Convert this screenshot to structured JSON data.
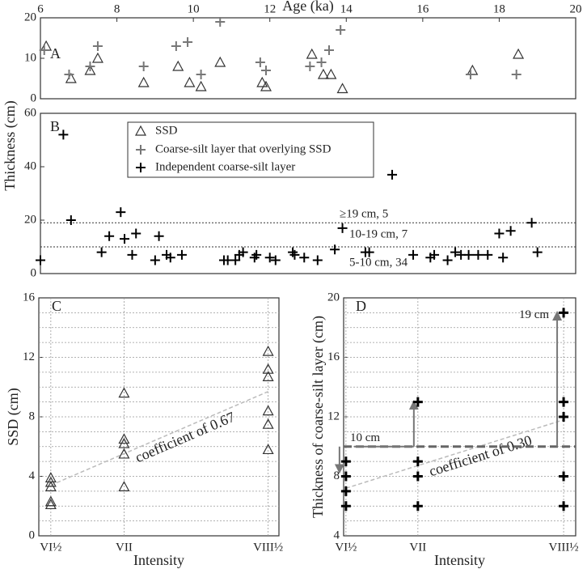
{
  "chart_data": [
    {
      "type": "scatter",
      "panel": "A",
      "xlabel": "Age (ka)",
      "ylabel": "Thickness (cm)",
      "xlim": [
        6,
        20
      ],
      "xticks": [
        6,
        8,
        10,
        12,
        14,
        16,
        18,
        20
      ],
      "ylim": [
        0,
        20
      ],
      "yticks": [
        0,
        10,
        20
      ],
      "series": [
        {
          "name": "SSD",
          "marker": "triangle",
          "color": "#333333",
          "x": [
            6.15,
            6.8,
            7.3,
            7.5,
            8.7,
            9.6,
            9.9,
            10.2,
            10.7,
            11.8,
            11.9,
            13.1,
            13.4,
            13.6,
            13.9,
            17.3,
            18.5
          ],
          "values": [
            13,
            5,
            7,
            10,
            4,
            8,
            4,
            3,
            9,
            4,
            3,
            11,
            6,
            6,
            2.5,
            7,
            11
          ]
        },
        {
          "name": "Coarse-silt layer that overlying SSD",
          "marker": "plus",
          "color": "#777777",
          "x": [
            6.1,
            6.75,
            7.3,
            7.5,
            8.7,
            9.55,
            9.85,
            10.2,
            10.7,
            11.75,
            11.9,
            13.05,
            13.35,
            13.55,
            13.85,
            17.25,
            18.45
          ],
          "values": [
            12,
            6,
            8,
            13,
            8,
            13,
            14,
            6,
            19,
            9,
            7,
            8,
            9,
            12,
            17,
            6,
            6
          ]
        }
      ]
    },
    {
      "type": "scatter",
      "panel": "B",
      "xlim": [
        6,
        20
      ],
      "ylim": [
        0,
        60
      ],
      "yticks": [
        0,
        20,
        40,
        60
      ],
      "hlines": [
        19,
        10
      ],
      "annotations": [
        "≥19 cm, 5",
        "10-19 cm, 7",
        "5-10 cm, 34"
      ],
      "series": [
        {
          "name": "Independent coarse-silt layer",
          "marker": "plus",
          "color": "#000000",
          "x": [
            6.0,
            6.6,
            6.8,
            7.6,
            7.8,
            8.1,
            8.2,
            8.4,
            8.5,
            9.0,
            9.1,
            9.3,
            9.4,
            9.7,
            10.8,
            10.9,
            11.1,
            11.2,
            11.3,
            11.6,
            11.65,
            12.0,
            12.15,
            12.6,
            12.65,
            12.9,
            13.25,
            13.7,
            13.9,
            14.5,
            14.6,
            15.2,
            15.75,
            16.2,
            16.3,
            16.65,
            16.85,
            17.0,
            17.2,
            17.45,
            17.7,
            18.0,
            18.1,
            18.3,
            18.85,
            19.0
          ],
          "values": [
            5,
            52,
            20,
            8,
            14,
            23,
            13,
            7,
            15,
            5,
            14,
            7,
            6,
            7,
            5,
            5,
            5,
            7,
            8,
            6,
            7,
            6,
            5,
            8,
            7,
            6,
            5,
            9,
            17,
            8,
            8,
            37,
            7,
            6,
            7,
            5,
            8,
            7,
            7,
            7,
            7,
            15,
            6,
            16,
            19,
            8
          ]
        }
      ]
    },
    {
      "type": "scatter",
      "panel": "C",
      "xlabel": "Intensity",
      "ylabel": "SSD (cm)",
      "categories": [
        "VI½",
        "VII",
        "VIII½"
      ],
      "ylim": [
        0,
        16
      ],
      "yticks": [
        0,
        4,
        8,
        12,
        16
      ],
      "minor_yticks": [
        1,
        2,
        3,
        4,
        5,
        6,
        7,
        8,
        9,
        10,
        11,
        12,
        13,
        14,
        15
      ],
      "trend": [
        3.4,
        9.7
      ],
      "trend_label": "coefficient of 0.67",
      "series": [
        {
          "marker": "triangle",
          "color": "#333333",
          "x": [
            "VI½",
            "VI½",
            "VI½",
            "VI½",
            "VI½",
            "VII",
            "VII",
            "VII",
            "VII",
            "VII",
            "VIII½",
            "VIII½",
            "VIII½",
            "VIII½",
            "VIII½",
            "VIII½"
          ],
          "values": [
            2.1,
            2.3,
            3.3,
            3.6,
            3.9,
            3.3,
            5.5,
            6.2,
            6.5,
            9.6,
            5.8,
            7.5,
            8.4,
            10.7,
            11.2,
            12.4
          ]
        }
      ]
    },
    {
      "type": "scatter",
      "panel": "D",
      "xlabel": "Intensity",
      "ylabel": "Thickness of coarse-silt layer (cm)",
      "categories": [
        "VI½",
        "VII",
        "VIII½"
      ],
      "ylim": [
        4,
        20
      ],
      "yticks": [
        4,
        8,
        12,
        16,
        20
      ],
      "minor_yticks": [
        5,
        6,
        7,
        8,
        9,
        10,
        11,
        12,
        13,
        14,
        15,
        16,
        17,
        18,
        19
      ],
      "trend": [
        7.2,
        11.8
      ],
      "trend_label": "coefficient of 0.30",
      "hline": 10,
      "hline_label": "10 cm",
      "arrows": [
        {
          "x": "VI½",
          "from": 10,
          "to": 8.3
        },
        {
          "x": "VII",
          "from": 10,
          "to": 13
        },
        {
          "x": "VIII½",
          "from": 10,
          "to": 19
        }
      ],
      "arrow_label": "19 cm",
      "series": [
        {
          "marker": "plus",
          "color": "#000000",
          "x": [
            "VI½",
            "VI½",
            "VI½",
            "VI½",
            "VII",
            "VII",
            "VII",
            "VII",
            "VIII½",
            "VIII½",
            "VIII½",
            "VIII½",
            "VIII½"
          ],
          "values": [
            6,
            7,
            8,
            9,
            6,
            8,
            9,
            13,
            6,
            8,
            12,
            13,
            19
          ]
        }
      ]
    }
  ]
}
